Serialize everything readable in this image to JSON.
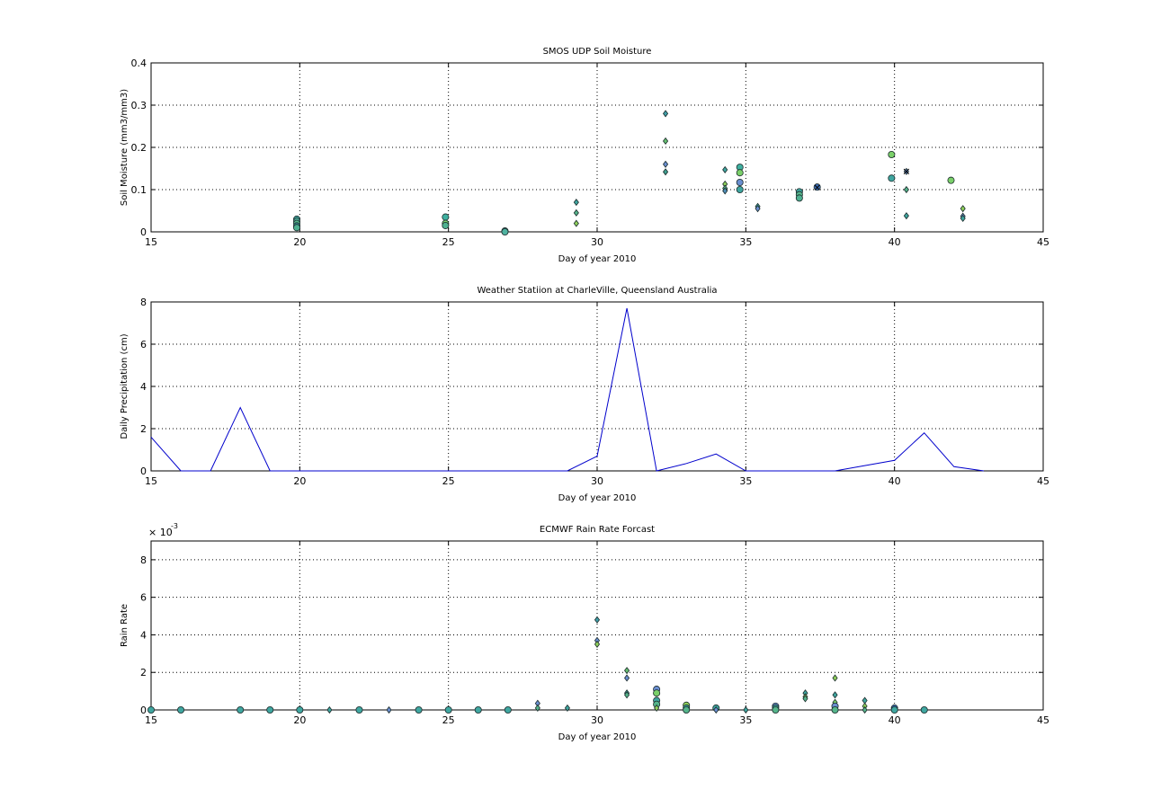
{
  "chart_data": [
    {
      "type": "scatter",
      "title": "SMOS UDP Soil Moisture",
      "xlabel": "Day of year 2010",
      "ylabel": "Soil Moisture (mm3/mm3)",
      "xlim": [
        15,
        45
      ],
      "ylim": [
        0,
        0.4
      ],
      "xticks": [
        15,
        20,
        25,
        30,
        35,
        40,
        45
      ],
      "yticks": [
        0,
        0.1,
        0.2,
        0.3,
        0.4
      ],
      "xtick_labels": [
        "15",
        "20",
        "25",
        "30",
        "35",
        "40",
        "45"
      ],
      "ytick_labels": [
        "0",
        "0.1",
        "0.2",
        "0.3",
        "0.4"
      ],
      "grid": true,
      "points": [
        {
          "x": 19.9,
          "y": 0.03,
          "m": "o",
          "c": "#3fa6a0"
        },
        {
          "x": 19.9,
          "y": 0.025,
          "m": "o",
          "c": "#4fb2a0"
        },
        {
          "x": 19.9,
          "y": 0.02,
          "m": "o",
          "c": "#55b48a"
        },
        {
          "x": 19.9,
          "y": 0.014,
          "m": "o",
          "c": "#3f9ea8"
        },
        {
          "x": 19.9,
          "y": 0.01,
          "m": "o",
          "c": "#4fb090"
        },
        {
          "x": 24.9,
          "y": 0.035,
          "m": "o",
          "c": "#3fb0a0"
        },
        {
          "x": 24.9,
          "y": 0.02,
          "m": "o",
          "c": "#7bd06a"
        },
        {
          "x": 24.9,
          "y": 0.015,
          "m": "o",
          "c": "#4fb090"
        },
        {
          "x": 26.9,
          "y": 0.002,
          "m": "o",
          "c": "#3f9ea8"
        },
        {
          "x": 26.9,
          "y": 0.0,
          "m": "o",
          "c": "#4fb2a0"
        },
        {
          "x": 29.3,
          "y": 0.07,
          "m": "d",
          "c": "#3fa6a0"
        },
        {
          "x": 29.3,
          "y": 0.045,
          "m": "d",
          "c": "#55b48a"
        },
        {
          "x": 29.3,
          "y": 0.02,
          "m": "d",
          "c": "#8fd05a"
        },
        {
          "x": 32.3,
          "y": 0.28,
          "m": "d",
          "c": "#3f9ea8"
        },
        {
          "x": 32.3,
          "y": 0.215,
          "m": "d",
          "c": "#66c070"
        },
        {
          "x": 32.3,
          "y": 0.16,
          "m": "d",
          "c": "#6a8ed0"
        },
        {
          "x": 32.3,
          "y": 0.142,
          "m": "d",
          "c": "#3fa090"
        },
        {
          "x": 34.3,
          "y": 0.147,
          "m": "d",
          "c": "#3fa6a0"
        },
        {
          "x": 34.3,
          "y": 0.113,
          "m": "d",
          "c": "#8fd05a"
        },
        {
          "x": 34.3,
          "y": 0.103,
          "m": "d",
          "c": "#55b48a"
        },
        {
          "x": 34.3,
          "y": 0.097,
          "m": "d",
          "c": "#4f8eb8"
        },
        {
          "x": 34.8,
          "y": 0.153,
          "m": "o",
          "c": "#3fb0a0"
        },
        {
          "x": 34.8,
          "y": 0.14,
          "m": "o",
          "c": "#7bd06a"
        },
        {
          "x": 34.8,
          "y": 0.117,
          "m": "o",
          "c": "#6a8ed0"
        },
        {
          "x": 34.8,
          "y": 0.1,
          "m": "o",
          "c": "#3fa6a0"
        },
        {
          "x": 35.4,
          "y": 0.06,
          "m": "d",
          "c": "#3fa6a0"
        },
        {
          "x": 35.4,
          "y": 0.055,
          "m": "d",
          "c": "#6a8ed0"
        },
        {
          "x": 36.8,
          "y": 0.095,
          "m": "o",
          "c": "#3fa6a0"
        },
        {
          "x": 36.8,
          "y": 0.088,
          "m": "o",
          "c": "#55b48a"
        },
        {
          "x": 36.8,
          "y": 0.08,
          "m": "o",
          "c": "#4fb090"
        },
        {
          "x": 37.4,
          "y": 0.106,
          "m": "o",
          "c": "#3f6fb8"
        },
        {
          "x": 37.4,
          "y": 0.105,
          "m": "x",
          "c": "#000000"
        },
        {
          "x": 39.9,
          "y": 0.183,
          "m": "o",
          "c": "#7bd06a"
        },
        {
          "x": 39.9,
          "y": 0.127,
          "m": "o",
          "c": "#3fa6a0"
        },
        {
          "x": 40.4,
          "y": 0.143,
          "m": "d",
          "c": "#6a8ed0"
        },
        {
          "x": 40.4,
          "y": 0.143,
          "m": "x",
          "c": "#000000"
        },
        {
          "x": 40.4,
          "y": 0.1,
          "m": "d",
          "c": "#55b48a"
        },
        {
          "x": 40.4,
          "y": 0.038,
          "m": "d",
          "c": "#3fa6a0"
        },
        {
          "x": 41.9,
          "y": 0.122,
          "m": "o",
          "c": "#7bd06a"
        },
        {
          "x": 42.3,
          "y": 0.055,
          "m": "d",
          "c": "#8fd05a"
        },
        {
          "x": 42.3,
          "y": 0.037,
          "m": "d",
          "c": "#6a8ed0"
        },
        {
          "x": 42.3,
          "y": 0.032,
          "m": "d",
          "c": "#3fa6a0"
        }
      ]
    },
    {
      "type": "line",
      "title": "Weather Statiion at CharleVille, Queensland Australia",
      "xlabel": "Day of year 2010",
      "ylabel": "Daily Precipitation (cm)",
      "xlim": [
        15,
        45
      ],
      "ylim": [
        0,
        8
      ],
      "xticks": [
        15,
        20,
        25,
        30,
        35,
        40,
        45
      ],
      "yticks": [
        0,
        2,
        4,
        6,
        8
      ],
      "xtick_labels": [
        "15",
        "20",
        "25",
        "30",
        "35",
        "40",
        "45"
      ],
      "ytick_labels": [
        "0",
        "2",
        "4",
        "6",
        "8"
      ],
      "grid": true,
      "line_color": "#0000cc",
      "x": [
        15,
        16,
        17,
        18,
        19,
        20,
        21,
        22,
        23,
        24,
        25,
        26,
        27,
        28,
        29,
        30,
        31,
        32,
        33,
        34,
        35,
        36,
        37,
        38,
        39,
        40,
        41,
        42,
        43
      ],
      "y": [
        1.6,
        0,
        0,
        3.0,
        0,
        0,
        0,
        0,
        0,
        0,
        0,
        0,
        0,
        0,
        0,
        0.7,
        7.7,
        0,
        0.35,
        0.8,
        0,
        0,
        0,
        0,
        0.25,
        0.5,
        1.8,
        0.2,
        0
      ]
    },
    {
      "type": "scatter",
      "title": "ECMWF Rain Rate Forcast",
      "xlabel": "Day of year 2010",
      "ylabel": "Rain Rate",
      "exponent_label": "× 10",
      "exponent_power": "-3",
      "xlim": [
        15,
        45
      ],
      "ylim": [
        0,
        0.009
      ],
      "xticks": [
        15,
        20,
        25,
        30,
        35,
        40,
        45
      ],
      "yticks": [
        0,
        0.002,
        0.004,
        0.006,
        0.008
      ],
      "xtick_labels": [
        "15",
        "20",
        "25",
        "30",
        "35",
        "40",
        "45"
      ],
      "ytick_labels": [
        "0",
        "2",
        "4",
        "6",
        "8"
      ],
      "grid": true,
      "points": [
        {
          "x": 15,
          "y": 0.0,
          "m": "o",
          "c": "#3fa6a0"
        },
        {
          "x": 16,
          "y": 0.0,
          "m": "o",
          "c": "#3fa6a0"
        },
        {
          "x": 18,
          "y": 0.0,
          "m": "o",
          "c": "#3fa6a0"
        },
        {
          "x": 19,
          "y": 0.0,
          "m": "o",
          "c": "#3fa6a0"
        },
        {
          "x": 20,
          "y": 0.0,
          "m": "o",
          "c": "#3fa6a0"
        },
        {
          "x": 21,
          "y": 0.0,
          "m": "d",
          "c": "#3fa6a0"
        },
        {
          "x": 22,
          "y": 0.0,
          "m": "o",
          "c": "#3fa6a0"
        },
        {
          "x": 23,
          "y": 0.0,
          "m": "d",
          "c": "#6a8ed0"
        },
        {
          "x": 24,
          "y": 0.0,
          "m": "o",
          "c": "#3fa6a0"
        },
        {
          "x": 25,
          "y": 0.0,
          "m": "o",
          "c": "#3fa6a0"
        },
        {
          "x": 26,
          "y": 0.0,
          "m": "o",
          "c": "#3fa6a0"
        },
        {
          "x": 27,
          "y": 0.0,
          "m": "o",
          "c": "#3fa6a0"
        },
        {
          "x": 28,
          "y": 0.00035,
          "m": "d",
          "c": "#6a8ed0"
        },
        {
          "x": 28,
          "y": 0.0001,
          "m": "d",
          "c": "#55b48a"
        },
        {
          "x": 29,
          "y": 0.0001,
          "m": "d",
          "c": "#3fa6a0"
        },
        {
          "x": 30,
          "y": 0.0048,
          "m": "d",
          "c": "#3f9ea8"
        },
        {
          "x": 30,
          "y": 0.0037,
          "m": "d",
          "c": "#6a8ed0"
        },
        {
          "x": 30,
          "y": 0.0035,
          "m": "d",
          "c": "#8fd05a"
        },
        {
          "x": 31,
          "y": 0.0021,
          "m": "d",
          "c": "#66c070"
        },
        {
          "x": 31,
          "y": 0.0017,
          "m": "d",
          "c": "#6a8ed0"
        },
        {
          "x": 31,
          "y": 0.0009,
          "m": "d",
          "c": "#3fa6a0"
        },
        {
          "x": 31,
          "y": 0.0008,
          "m": "d",
          "c": "#55b48a"
        },
        {
          "x": 32,
          "y": 0.0011,
          "m": "o",
          "c": "#6a8ed0"
        },
        {
          "x": 32,
          "y": 0.0009,
          "m": "o",
          "c": "#7bd06a"
        },
        {
          "x": 32,
          "y": 0.0005,
          "m": "o",
          "c": "#3fa6a0"
        },
        {
          "x": 32,
          "y": 0.0003,
          "m": "o",
          "c": "#55b48a"
        },
        {
          "x": 32,
          "y": 0.0001,
          "m": "d",
          "c": "#8fd05a"
        },
        {
          "x": 33,
          "y": 0.00025,
          "m": "o",
          "c": "#8fd05a"
        },
        {
          "x": 33,
          "y": 0.0001,
          "m": "o",
          "c": "#3fa6a0"
        },
        {
          "x": 33,
          "y": 0.0,
          "m": "o",
          "c": "#55b48a"
        },
        {
          "x": 34,
          "y": 0.0001,
          "m": "o",
          "c": "#3fa6a0"
        },
        {
          "x": 34,
          "y": 0.0,
          "m": "d",
          "c": "#6a8ed0"
        },
        {
          "x": 35,
          "y": 0.0,
          "m": "d",
          "c": "#3fa6a0"
        },
        {
          "x": 36,
          "y": 0.0002,
          "m": "o",
          "c": "#6a8ed0"
        },
        {
          "x": 36,
          "y": 0.0001,
          "m": "o",
          "c": "#3fa6a0"
        },
        {
          "x": 36,
          "y": 0.0,
          "m": "o",
          "c": "#55b48a"
        },
        {
          "x": 37,
          "y": 0.0009,
          "m": "d",
          "c": "#3fa6a0"
        },
        {
          "x": 37,
          "y": 0.0007,
          "m": "d",
          "c": "#8fd05a"
        },
        {
          "x": 37,
          "y": 0.0006,
          "m": "d",
          "c": "#55b48a"
        },
        {
          "x": 38,
          "y": 0.0017,
          "m": "d",
          "c": "#8fd05a"
        },
        {
          "x": 38,
          "y": 0.0008,
          "m": "d",
          "c": "#3fa6a0"
        },
        {
          "x": 38,
          "y": 0.0004,
          "m": "d",
          "c": "#7bd06a"
        },
        {
          "x": 38,
          "y": 0.0002,
          "m": "o",
          "c": "#6a8ed0"
        },
        {
          "x": 38,
          "y": 0.0,
          "m": "o",
          "c": "#55b48a"
        },
        {
          "x": 39,
          "y": 0.0005,
          "m": "d",
          "c": "#3fa6a0"
        },
        {
          "x": 39,
          "y": 0.0002,
          "m": "d",
          "c": "#8fd05a"
        },
        {
          "x": 39,
          "y": 0.0,
          "m": "d",
          "c": "#55b48a"
        },
        {
          "x": 40,
          "y": 0.0001,
          "m": "o",
          "c": "#3f6fb8"
        },
        {
          "x": 40,
          "y": 0.0,
          "m": "o",
          "c": "#3fa6a0"
        },
        {
          "x": 41,
          "y": 0.0,
          "m": "o",
          "c": "#3fa6a0"
        }
      ]
    }
  ]
}
